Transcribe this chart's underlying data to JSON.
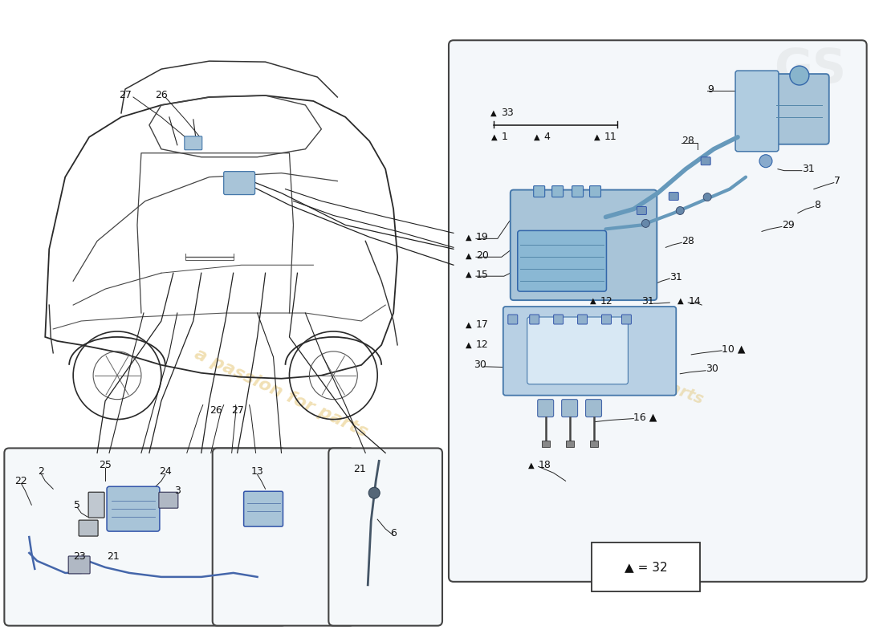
{
  "bg_color": "#ffffff",
  "watermark_text": "a passion for parts",
  "watermark_color": "#d4a017",
  "legend_text": "▲ = 32",
  "label_fontsize": 9,
  "box_border_color": "#444444",
  "right_panel_bg": "#f0f4f8",
  "part_color": "#a8c4d8",
  "tube_color": "#6699bb",
  "outline_color": "#333333"
}
